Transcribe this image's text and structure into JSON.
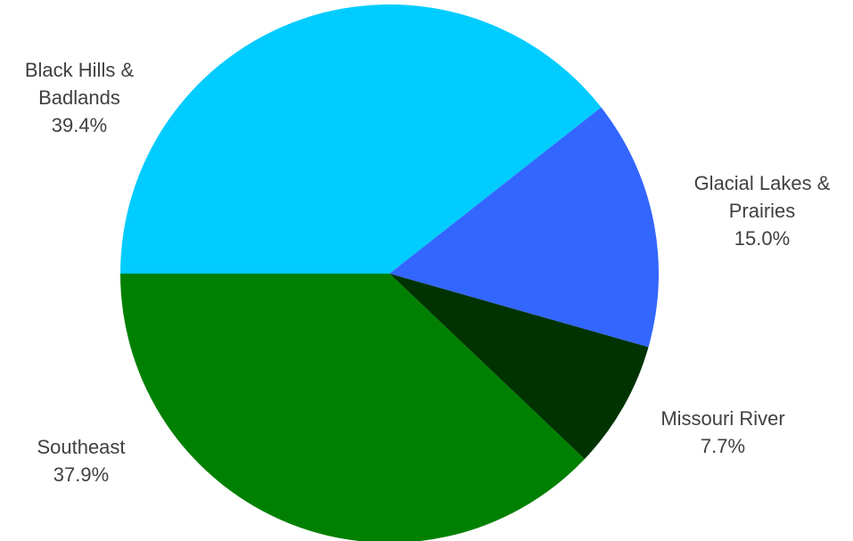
{
  "chart_data": {
    "type": "pie",
    "title": "",
    "start_angle_deg": 180,
    "direction": "clockwise",
    "slices": [
      {
        "label": [
          "Black Hills &",
          "Badlands"
        ],
        "value": 39.4,
        "value_label": "39.4%",
        "color": "#00CCFF"
      },
      {
        "label": [
          "Glacial Lakes &",
          "Prairies"
        ],
        "value": 15.0,
        "value_label": "15.0%",
        "color": "#3366FF"
      },
      {
        "label": [
          "Missouri River"
        ],
        "value": 7.7,
        "value_label": "7.7%",
        "color": "#003300"
      },
      {
        "label": [
          "Southeast"
        ],
        "value": 37.9,
        "value_label": "37.9%",
        "color": "#008000"
      }
    ]
  }
}
